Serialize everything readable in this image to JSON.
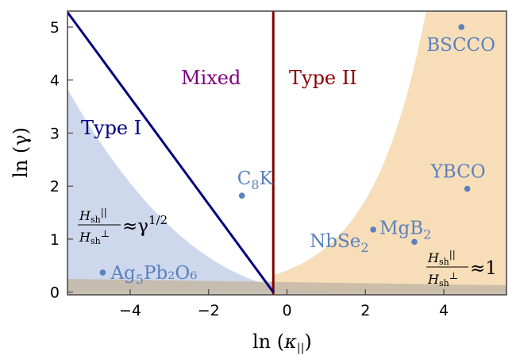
{
  "chart_data": {
    "type": "scatter",
    "xlabel_main": "ln (",
    "xlabel_symbol": "κ",
    "xlabel_sub": "||",
    "xlabel_close": ")",
    "ylabel": "ln (γ)",
    "xlim": [
      -5.6,
      5.6
    ],
    "ylim": [
      -0.05,
      5.3
    ],
    "x_ticks": [
      -4,
      -2,
      0,
      2,
      4
    ],
    "x_tick_labels": [
      "−4",
      "−2",
      "0",
      "2",
      "4"
    ],
    "y_ticks": [
      0,
      1,
      2,
      3,
      4,
      5
    ],
    "y_tick_labels": [
      "0",
      "1",
      "2",
      "3",
      "4",
      "5"
    ],
    "regions": [
      {
        "name": "Type I",
        "color": "#000080"
      },
      {
        "name": "Mixed",
        "color": "#800080"
      },
      {
        "name": "Type II",
        "color": "#8b0000"
      }
    ],
    "boundaries": {
      "vertical_line_x": -0.35,
      "diagonal_line": {
        "x0": -5.6,
        "y0": 5.28,
        "x1": -0.35,
        "y1": 0.0
      }
    },
    "shading": {
      "blue": "#c9d4ea",
      "orange": "#f7deb8"
    },
    "points": [
      {
        "label": "BSCCO",
        "sub": "",
        "x": 4.45,
        "y": 5.0
      },
      {
        "label": "YBCO",
        "sub": "",
        "x": 4.6,
        "y": 1.95
      },
      {
        "label": "C",
        "sub": "8",
        "tail": "K",
        "x": -1.15,
        "y": 1.82
      },
      {
        "label": "NbSe",
        "sub": "2",
        "x": 2.2,
        "y": 1.18
      },
      {
        "label": "MgB",
        "sub": "2",
        "x": 3.25,
        "y": 0.95
      },
      {
        "label": "Ag",
        "sub": "5",
        "tail": "Pb₂O₆",
        "x": -4.7,
        "y": 0.37
      }
    ],
    "formula_left": {
      "H": "H",
      "sub": "sh",
      "par": "||",
      "perp": "⊥",
      "rhs": "≈γ",
      "exp": "1/2"
    },
    "formula_right": {
      "H": "H",
      "sub": "sh",
      "par": "||",
      "perp": "⊥",
      "rhs": "≈1"
    }
  }
}
